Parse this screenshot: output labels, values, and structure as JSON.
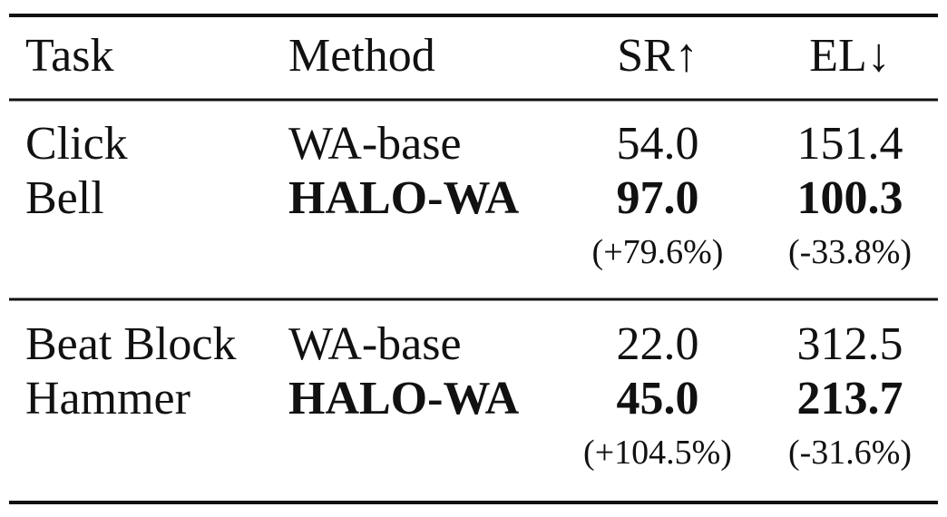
{
  "table": {
    "header": [
      "Task",
      "Method",
      "SR↑",
      "EL↓"
    ],
    "groups": [
      {
        "task": [
          "Click",
          "Bell"
        ],
        "rows": [
          {
            "method": "WA-base",
            "sr": "54.0",
            "el": "151.4",
            "bold": false
          },
          {
            "method": "HALO-WA",
            "sr": "97.0",
            "el": "100.3",
            "bold": true
          }
        ],
        "sr_change": "(+79.6%)",
        "el_change": "(-33.8%)"
      },
      {
        "task": [
          "Beat Block",
          "Hammer"
        ],
        "rows": [
          {
            "method": "WA-base",
            "sr": "22.0",
            "el": "312.5",
            "bold": false
          },
          {
            "method": "HALO-WA",
            "sr": "45.0",
            "el": "213.7",
            "bold": true
          }
        ],
        "sr_change": "(+104.5%)",
        "el_change": "(-31.6%)"
      }
    ]
  }
}
